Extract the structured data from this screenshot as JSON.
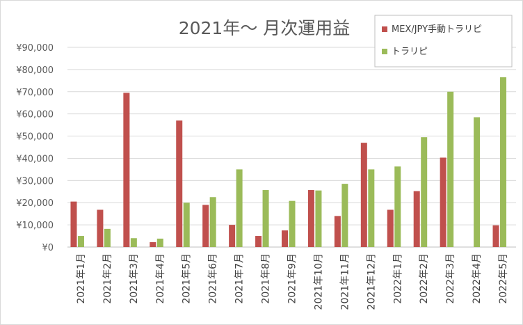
{
  "chart_data": {
    "type": "bar",
    "title": "2021年～ 月次運用益",
    "categories": [
      "2021年1月",
      "2021年2月",
      "2021年3月",
      "2021年4月",
      "2021年5月",
      "2021年6月",
      "2021年7月",
      "2021年8月",
      "2021年9月",
      "2021年10月",
      "2021年11月",
      "2021年12月",
      "2022年1月",
      "2022年2月",
      "2022年3月",
      "2022年4月",
      "2022年5月"
    ],
    "series": [
      {
        "name": "MEX/JPY手動トラリピ",
        "color": "#c0504d",
        "values": [
          20500,
          16800,
          69500,
          2200,
          57000,
          19000,
          10000,
          5000,
          7500,
          25700,
          14000,
          47000,
          16800,
          25200,
          40300,
          0,
          9800
        ]
      },
      {
        "name": "トラリピ",
        "color": "#9bbb59",
        "values": [
          5000,
          8200,
          4000,
          3800,
          20000,
          22500,
          35000,
          25700,
          20800,
          25500,
          28500,
          35000,
          36300,
          49500,
          70000,
          58500,
          76500
        ]
      }
    ],
    "ylim": [
      0,
      90000
    ],
    "yticks": [
      "¥0",
      "¥10,000",
      "¥20,000",
      "¥30,000",
      "¥40,000",
      "¥50,000",
      "¥60,000",
      "¥70,000",
      "¥80,000",
      "¥90,000"
    ],
    "grid": true,
    "legend": "top-right"
  }
}
